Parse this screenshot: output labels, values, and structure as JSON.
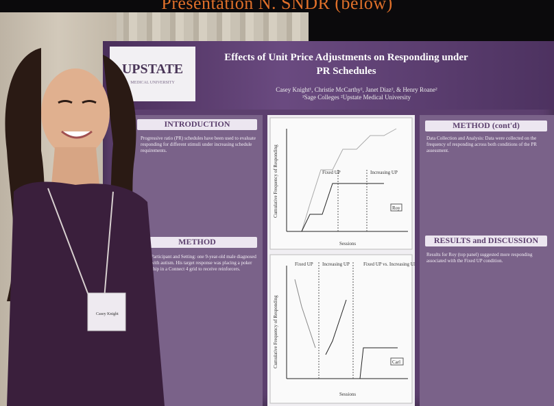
{
  "caption": "Presentation N. SNDR (below)",
  "poster": {
    "logo": "UPSTATE",
    "logo_sub": "MEDICAL UNIVERSITY",
    "title": "Effects of Unit Price Adjustments on Responding under PR Schedules",
    "authors": "Casey Knight¹, Christie McCarthy², Janet Diaz², & Henry Roane²",
    "affiliations": "¹Sage Colleges ²Upstate Medical University",
    "sections": {
      "introduction": "INTRODUCTION",
      "method": "METHOD",
      "method_cont": "METHOD (cont'd)",
      "results": "RESULTS and DISCUSSION"
    },
    "intro_text": "Progressive ratio (PR) schedules have been used to evaluate responding for different stimuli under increasing schedule requirements.",
    "method_text": "Participant and Setting: one 9-year-old male diagnosed with autism. His target response was placing a poker chip in a Connect 4 grid to receive reinforcers.",
    "method_cont_text": "Data Collection and Analysis: Data were collected on the frequency of responding across both conditions of the PR assessment.",
    "results_text": "Results for Roy (top panel) suggested more responding associated with the Fixed UP condition.",
    "name_badge": "Casey Knight",
    "chart1": {
      "ylabel": "Cumulative Frequency of Responding",
      "xlabel": "Sessions",
      "legend": "Roy",
      "annotations": [
        "Fixed UP",
        "Increasing UP"
      ],
      "yticks": [
        "0",
        "5",
        "10",
        "15",
        "20",
        "25"
      ],
      "xticks": [
        "2",
        "4",
        "6",
        "8",
        "10",
        "12",
        "14",
        "16",
        "18"
      ]
    },
    "chart2": {
      "ylabel": "Cumulative Frequency of Responding",
      "xlabel": "Sessions",
      "legend": "Carl",
      "annotations": [
        "Fixed UP",
        "Increasing UP",
        "Fixed UP vs. Increasing UP"
      ],
      "yticks": [
        "0",
        "50",
        "100",
        "150",
        "200",
        "250",
        "300",
        "350",
        "400"
      ],
      "xticks": [
        "2",
        "4",
        "6",
        "8",
        "10",
        "12",
        "14",
        "16",
        "18"
      ]
    }
  }
}
